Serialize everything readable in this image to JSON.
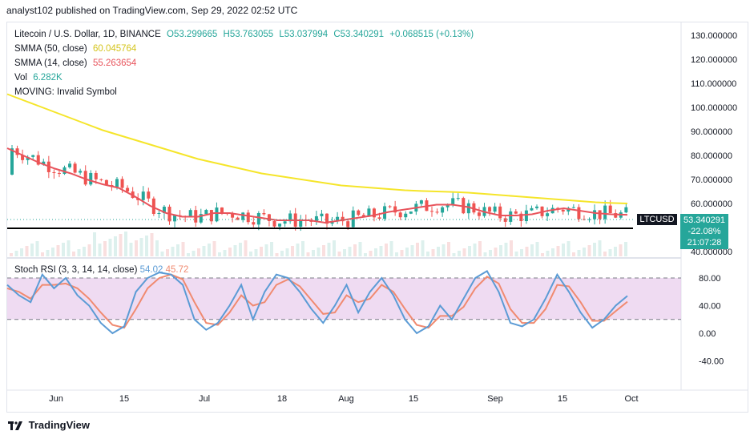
{
  "header": {
    "published": "analyst102 published on TradingView.com, Sep 29, 2022 02:52 UTC"
  },
  "legend": {
    "symbol": "Litecoin / U.S. Dollar, 1D, BINANCE",
    "open": "O53.299665",
    "high": "H53.763055",
    "low": "L53.037994",
    "close": "C53.340291",
    "change": "+0.068515 (+0.13%)",
    "smma50_label": "SMMA (50, close)",
    "smma50_value": "60.045764",
    "smma14_label": "SMMA (14, close)",
    "smma14_value": "55.263654",
    "vol_label": "Vol",
    "vol_value": "6.282K",
    "moving_label": "MOVING: Invalid Symbol"
  },
  "rsi_legend": {
    "label": "Stoch RSI (3, 3, 14, 14, close)",
    "k_value": "54.02",
    "d_value": "45.72"
  },
  "price_tag": {
    "symbol": "LTCUSD",
    "price": "53.340291",
    "change_pct": "-22.08%",
    "countdown": "21:07:28"
  },
  "footer": {
    "brand": "TradingView"
  },
  "colors": {
    "up": "#26a69a",
    "down": "#ef5350",
    "smma50": "#f5e52a",
    "smma14": "#e8545c",
    "k": "#5b9bd5",
    "d": "#f08a70",
    "rsi_band": "#e1bee7"
  },
  "chart_data": {
    "type": "candlestick",
    "price_axis": {
      "ticks": [
        "130.000000",
        "120.000000",
        "110.000000",
        "100.000000",
        "90.000000",
        "80.000000",
        "70.000000",
        "60.000000",
        "40.000000"
      ]
    },
    "rsi_axis": {
      "ticks": [
        "80.00",
        "40.00",
        "0.00",
        "-40.00"
      ]
    },
    "x_ticks": [
      "Jun",
      "15",
      "Jul",
      "18",
      "Aug",
      "15",
      "Sep",
      "15",
      "Oct"
    ],
    "support_level": 50,
    "smma50": [
      105.5,
      103,
      100.5,
      98,
      95.5,
      93,
      90.5,
      88.5,
      86.5,
      84.5,
      82.5,
      80.5,
      78.5,
      77,
      75.5,
      74,
      72.5,
      71.5,
      70.5,
      69.5,
      68.5,
      67.5,
      67,
      66.5,
      66,
      65.5,
      65.2,
      65,
      64.8,
      64.5,
      64,
      63.5,
      63,
      62.5,
      62,
      61.5,
      61,
      60.5,
      60.2,
      60
    ],
    "smma14": [
      83,
      80,
      77,
      74.5,
      72.5,
      70,
      68,
      66.5,
      63,
      59,
      56,
      54.5,
      54.5,
      56,
      56,
      55,
      54,
      53,
      53,
      53,
      52,
      53,
      54,
      55,
      56.5,
      57.5,
      58.5,
      59.5,
      59.5,
      58.5,
      56.5,
      55,
      55,
      55.5,
      57,
      58,
      57,
      56,
      55.5,
      55.3
    ],
    "stoch_k": [
      70,
      55,
      45,
      85,
      65,
      80,
      55,
      40,
      15,
      0,
      10,
      60,
      80,
      88,
      85,
      70,
      20,
      5,
      15,
      40,
      70,
      20,
      60,
      85,
      80,
      60,
      35,
      15,
      40,
      70,
      30,
      60,
      80,
      55,
      20,
      0,
      10,
      40,
      20,
      50,
      80,
      90,
      60,
      15,
      10,
      20,
      50,
      85,
      60,
      30,
      8,
      20,
      40,
      54
    ],
    "stoch_d": [
      65,
      60,
      50,
      70,
      70,
      72,
      65,
      50,
      30,
      12,
      8,
      35,
      65,
      80,
      85,
      78,
      45,
      15,
      12,
      30,
      55,
      40,
      45,
      70,
      78,
      68,
      48,
      28,
      30,
      55,
      45,
      50,
      70,
      60,
      35,
      12,
      8,
      25,
      25,
      38,
      65,
      82,
      72,
      35,
      15,
      15,
      35,
      70,
      68,
      45,
      18,
      18,
      32,
      45.72
    ]
  }
}
